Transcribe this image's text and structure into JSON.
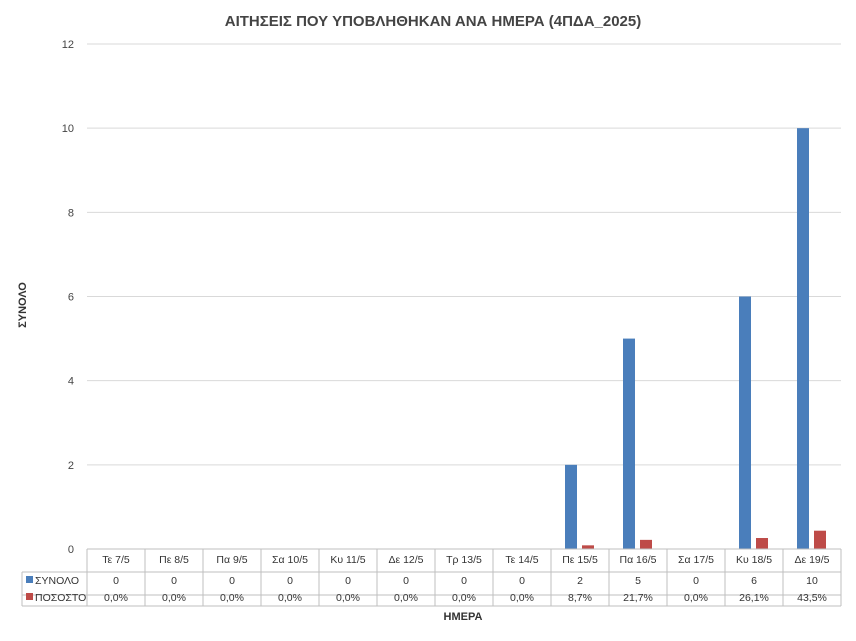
{
  "chart_data": {
    "type": "bar",
    "title": "ΑΙΤΗΣΕΙΣ ΠΟΥ ΥΠΟΒΛΗΘΗΚΑΝ ΑΝΑ ΗΜΕΡΑ (4ΠΔΑ_2025)",
    "xlabel": "ΗΜΕΡΑ",
    "ylabel": "ΣΥΝΟΛΟ",
    "ylim": [
      0,
      12
    ],
    "yticks": [
      "0",
      "2",
      "4",
      "6",
      "8",
      "10",
      "12"
    ],
    "grid": true,
    "legend": "data-table-left",
    "categories": [
      "Τε 7/5",
      "Πε 8/5",
      "Πα 9/5",
      "Σα 10/5",
      "Κυ 11/5",
      "Δε 12/5",
      "Τρ 13/5",
      "Τε 14/5",
      "Πε 15/5",
      "Πα 16/5",
      "Σα 17/5",
      "Κυ 18/5",
      "Δε 19/5"
    ],
    "series": [
      {
        "name": "ΣΥΝΟΛΟ",
        "color": "#4a7ebb",
        "values": [
          0,
          0,
          0,
          0,
          0,
          0,
          0,
          0,
          2,
          5,
          0,
          6,
          10
        ],
        "labels": [
          "0",
          "0",
          "0",
          "0",
          "0",
          "0",
          "0",
          "0",
          "2",
          "5",
          "0",
          "6",
          "10"
        ]
      },
      {
        "name": "ΠΟΣΟΣΤΟ",
        "color": "#be4b48",
        "values": [
          0,
          0,
          0,
          0,
          0,
          0,
          0,
          0,
          0.087,
          0.217,
          0,
          0.261,
          0.435
        ],
        "labels": [
          "0,0%",
          "0,0%",
          "0,0%",
          "0,0%",
          "0,0%",
          "0,0%",
          "0,0%",
          "0,0%",
          "8,7%",
          "21,7%",
          "0,0%",
          "26,1%",
          "43,5%"
        ]
      }
    ]
  }
}
